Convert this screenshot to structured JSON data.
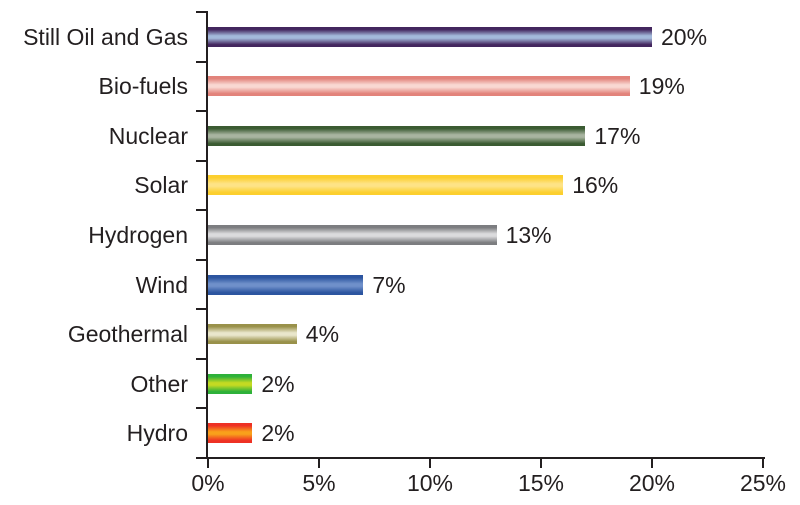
{
  "chart_data": {
    "type": "bar",
    "orientation": "horizontal",
    "title": "",
    "xlabel": "",
    "ylabel": "",
    "categories": [
      "Still Oil and Gas",
      "Bio-fuels",
      "Nuclear",
      "Solar",
      "Hydrogen",
      "Wind",
      "Geothermal",
      "Other",
      "Hydro"
    ],
    "values": [
      20,
      19,
      17,
      16,
      13,
      7,
      4,
      2,
      2
    ],
    "value_labels": [
      "20%",
      "19%",
      "17%",
      "16%",
      "13%",
      "7%",
      "4%",
      "2%",
      "2%"
    ],
    "bar_colors": [
      {
        "edge": "#43265e",
        "highlight": "#a3b9da"
      },
      {
        "edge": "#e2837b",
        "highlight": "#f9d8d2"
      },
      {
        "edge": "#3b5b32",
        "highlight": "#a8b4a0"
      },
      {
        "edge": "#fccf2e",
        "highlight": "#fee386"
      },
      {
        "edge": "#7c7d80",
        "highlight": "#dbdbdd"
      },
      {
        "edge": "#2c55a0",
        "highlight": "#6f90ca"
      },
      {
        "edge": "#99914a",
        "highlight": "#e9e6cb"
      },
      {
        "edge": "#2eb13a",
        "highlight": "#c4da22"
      },
      {
        "edge": "#ee3124",
        "highlight": "#f9a01b"
      }
    ],
    "x_ticks": [
      "0%",
      "5%",
      "10%",
      "15%",
      "20%",
      "25%"
    ],
    "x_tick_values": [
      0,
      5,
      10,
      15,
      20,
      25
    ],
    "xlim": [
      0,
      25
    ],
    "grid": "off",
    "legend": "none",
    "axis_color": "#231f20",
    "text_color": "#231f20",
    "background": "#ffffff"
  }
}
